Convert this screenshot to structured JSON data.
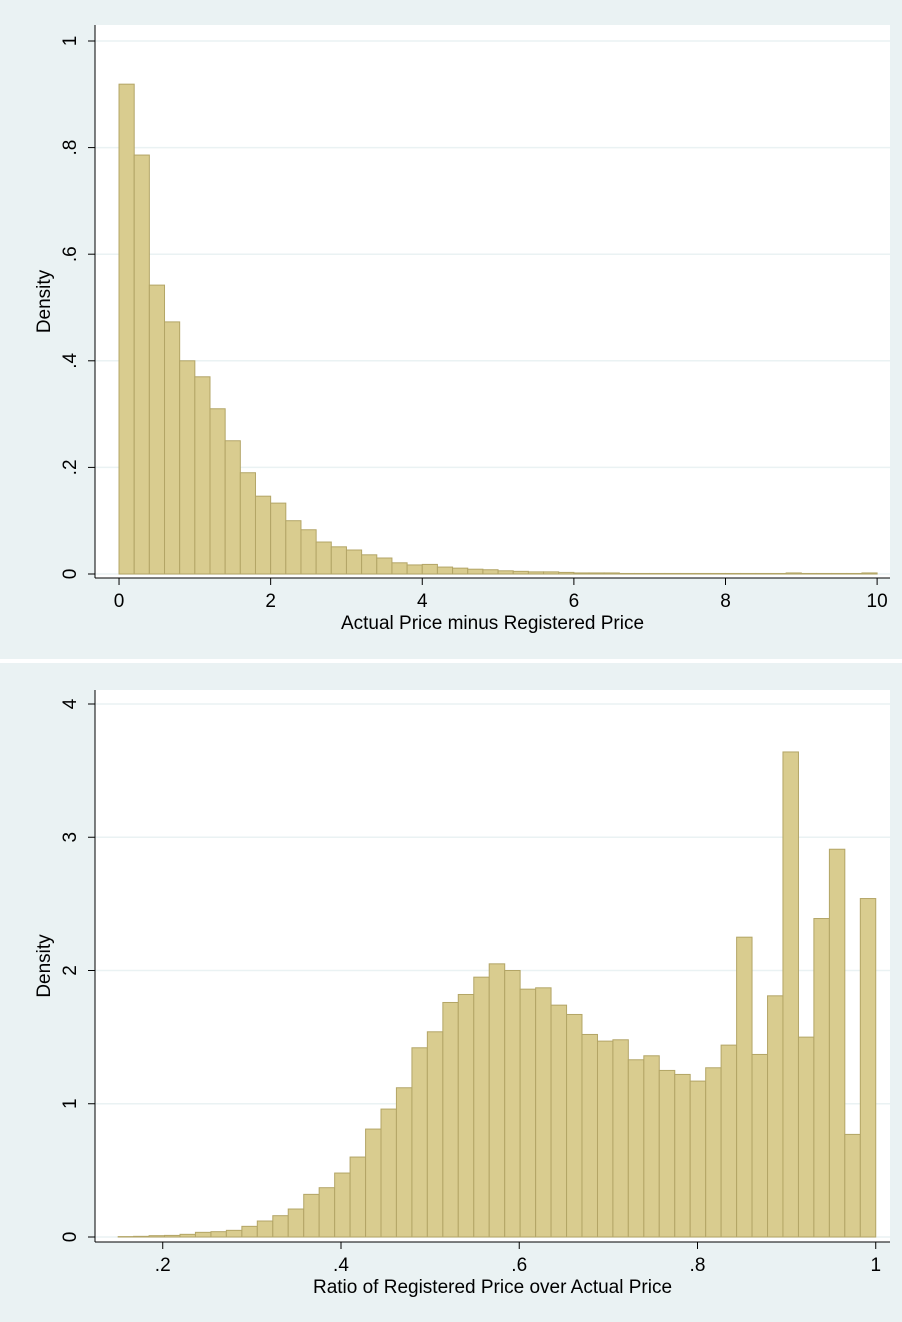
{
  "chart_data": [
    {
      "type": "histogram",
      "x_label": "Actual Price minus Registered Price",
      "y_label": "Density",
      "bins": [
        0,
        0.2,
        0.4,
        0.6,
        0.8,
        1,
        1.2,
        1.4,
        1.6,
        1.8,
        2,
        2.2,
        2.4,
        2.6,
        2.8,
        3,
        3.2,
        3.4,
        3.6,
        3.8,
        4,
        4.2,
        4.4,
        4.6,
        4.8,
        5,
        5.2,
        5.4,
        5.6,
        5.8,
        6,
        6.2,
        6.4,
        6.6,
        6.8,
        7,
        7.2,
        7.4,
        7.6,
        7.8,
        8,
        8.2,
        8.4,
        8.6,
        8.8,
        9,
        9.2,
        9.4,
        9.6,
        9.8,
        10
      ],
      "values": [
        0.919,
        0.786,
        0.542,
        0.473,
        0.4,
        0.37,
        0.31,
        0.25,
        0.19,
        0.146,
        0.133,
        0.1,
        0.083,
        0.06,
        0.051,
        0.045,
        0.036,
        0.03,
        0.021,
        0.017,
        0.018,
        0.013,
        0.011,
        0.009,
        0.008,
        0.006,
        0.005,
        0.004,
        0.004,
        0.003,
        0.002,
        0.002,
        0.002,
        0.001,
        0.001,
        0.001,
        0.001,
        0.001,
        0.001,
        0.001,
        0.001,
        0.001,
        0.001,
        0.001,
        0.002,
        0.001,
        0.001,
        0.001,
        0.001,
        0.002
      ],
      "color": "#d9cc8f",
      "edgecolor": "#b3a566",
      "xlim": [
        -0.317,
        10.17
      ],
      "ylim": [
        -0.0075,
        1.03
      ],
      "xticks": [
        0,
        2,
        4,
        6,
        8,
        10
      ],
      "yticks": [
        0,
        {
          "value": 0.2,
          "label": ".2"
        },
        {
          "value": 0.4,
          "label": ".4"
        },
        {
          "value": 0.6,
          "label": ".6"
        },
        {
          "value": 0.8,
          "label": ".8"
        },
        1
      ],
      "grid": true
    },
    {
      "type": "histogram",
      "x_label": "Ratio of Registered Price over Actual Price",
      "y_label": "Density",
      "bins": [
        0.15,
        0.1673,
        0.1847,
        0.202,
        0.2194,
        0.2367,
        0.2541,
        0.2714,
        0.2888,
        0.3061,
        0.3235,
        0.3408,
        0.3582,
        0.3755,
        0.3929,
        0.4102,
        0.4276,
        0.4449,
        0.4622,
        0.4796,
        0.4969,
        0.5143,
        0.5316,
        0.549,
        0.5663,
        0.5837,
        0.601,
        0.6184,
        0.6357,
        0.6531,
        0.6704,
        0.6878,
        0.7051,
        0.7224,
        0.7398,
        0.7571,
        0.7745,
        0.7918,
        0.8092,
        0.8265,
        0.8439,
        0.8612,
        0.8786,
        0.8959,
        0.9133,
        0.9306,
        0.948,
        0.9653,
        0.9827,
        1.0
      ],
      "values": [
        0.003,
        0.005,
        0.01,
        0.012,
        0.02,
        0.035,
        0.04,
        0.05,
        0.08,
        0.12,
        0.16,
        0.21,
        0.32,
        0.37,
        0.48,
        0.6,
        0.81,
        0.96,
        1.12,
        1.42,
        1.54,
        1.76,
        1.82,
        1.95,
        2.05,
        2.0,
        1.86,
        1.87,
        1.74,
        1.67,
        1.52,
        1.47,
        1.48,
        1.33,
        1.36,
        1.25,
        1.22,
        1.17,
        1.27,
        1.44,
        2.25,
        1.37,
        1.81,
        3.64,
        1.5,
        2.39,
        2.91,
        0.77,
        2.54
      ],
      "color": "#d9cc8f",
      "edgecolor": "#b3a566",
      "xlim": [
        0.124,
        1.016
      ],
      "ylim": [
        -0.0375,
        4.105
      ],
      "xticks": [
        {
          "value": 0.2,
          "label": ".2"
        },
        {
          "value": 0.4,
          "label": ".4"
        },
        {
          "value": 0.6,
          "label": ".6"
        },
        {
          "value": 0.8,
          "label": ".8"
        },
        1
      ],
      "yticks": [
        0,
        1,
        2,
        3,
        4
      ],
      "grid": true
    }
  ]
}
